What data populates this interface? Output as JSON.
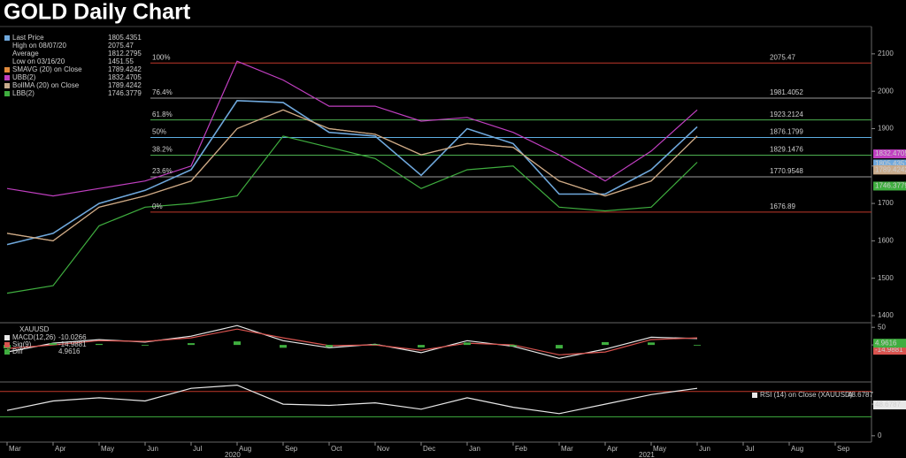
{
  "chart_data": [
    {
      "type": "line",
      "title": "GOLD Daily Chart",
      "x": [
        "2020-03",
        "2020-04",
        "2020-05",
        "2020-06",
        "2020-07",
        "2020-08",
        "2020-09",
        "2020-10",
        "2020-11",
        "2020-12",
        "2021-01",
        "2021-02",
        "2021-03",
        "2021-04",
        "2021-05",
        "2021-06"
      ],
      "xlim": [
        "2020-03",
        "2021-09"
      ],
      "ylim": [
        1381,
        2173
      ],
      "yticks": [
        1400,
        1500,
        1600,
        1700,
        1800,
        1900,
        2000,
        2100
      ],
      "series": [
        {
          "name": "Last Price",
          "color": "#6fa8dc",
          "last": 1805.4351,
          "values": [
            1590,
            1620,
            1700,
            1735,
            1790,
            1975,
            1970,
            1890,
            1880,
            1775,
            1900,
            1860,
            1725,
            1725,
            1790,
            1905
          ]
        },
        {
          "name": "SMAVG (20) on Close",
          "color": "#e08a3c",
          "last": 1789.4242,
          "values": [
            1620,
            1600,
            1690,
            1720,
            1760,
            1900,
            1950,
            1900,
            1885,
            1830,
            1860,
            1850,
            1760,
            1720,
            1760,
            1880
          ]
        },
        {
          "name": "UBB(2)",
          "color": "#c13fc1",
          "last": 1832.4705,
          "values": [
            1740,
            1720,
            1740,
            1760,
            1800,
            2080,
            2030,
            1960,
            1960,
            1920,
            1930,
            1890,
            1830,
            1760,
            1840,
            1950
          ]
        },
        {
          "name": "BollMA (20) on Close",
          "color": "#c9ab8c",
          "last": 1789.4242,
          "values": [
            1620,
            1600,
            1690,
            1720,
            1760,
            1900,
            1950,
            1900,
            1885,
            1830,
            1860,
            1850,
            1760,
            1720,
            1760,
            1880
          ]
        },
        {
          "name": "LBB(2)",
          "color": "#3fae3f",
          "last": 1746.3779,
          "values": [
            1460,
            1480,
            1640,
            1690,
            1700,
            1720,
            1880,
            1850,
            1820,
            1740,
            1790,
            1800,
            1690,
            1680,
            1690,
            1810
          ]
        }
      ],
      "stats": [
        {
          "label": "High on 08/07/20",
          "value": 2075.47
        },
        {
          "label": "Average",
          "value": 1812.2795
        },
        {
          "label": "Low on 03/16/20",
          "value": 1451.55
        }
      ],
      "fib_levels": [
        {
          "label": "100%",
          "value": 2075.47,
          "color": "#c0392b"
        },
        {
          "label": "76.4%",
          "value": 1981.4052,
          "color": "#9a9a9a"
        },
        {
          "label": "61.8%",
          "value": 1923.2124,
          "color": "#4caf50"
        },
        {
          "label": "50%",
          "value": 1876.1799,
          "color": "#5dade2"
        },
        {
          "label": "38.2%",
          "value": 1829.1476,
          "color": "#4caf50"
        },
        {
          "label": "23.6%",
          "value": 1770.9548,
          "color": "#9a9a9a"
        },
        {
          "label": "0%",
          "value": 1676.89,
          "color": "#c0392b"
        }
      ]
    },
    {
      "type": "line",
      "title": "XAUUSD",
      "x": [
        "2020-03",
        "2020-04",
        "2020-05",
        "2020-06",
        "2020-07",
        "2020-08",
        "2020-09",
        "2020-10",
        "2020-11",
        "2020-12",
        "2021-01",
        "2021-02",
        "2021-03",
        "2021-04",
        "2021-05",
        "2021-06"
      ],
      "xlim": [
        "2020-03",
        "2021-09"
      ],
      "ylim": [
        -105,
        63
      ],
      "yticks": [
        0,
        50
      ],
      "series": [
        {
          "name": "MACD(12,26)",
          "color": "#e8e8e8",
          "last": -10.0266,
          "values": [
            -20,
            5,
            15,
            8,
            25,
            55,
            12,
            -8,
            2,
            -22,
            12,
            -4,
            -38,
            -12,
            22,
            18
          ]
        },
        {
          "name": "Sig(9)",
          "color": "#d9534f",
          "last": -14.9881,
          "values": [
            -10,
            0,
            12,
            10,
            20,
            45,
            20,
            -2,
            0,
            -15,
            5,
            0,
            -28,
            -20,
            15,
            20
          ]
        },
        {
          "name": "Diff",
          "color": "#3fae3f",
          "type": "bar",
          "last": 4.9616,
          "values": [
            -10,
            5,
            3,
            -2,
            5,
            10,
            -8,
            -6,
            2,
            -7,
            7,
            -4,
            -10,
            8,
            7,
            -2
          ]
        }
      ]
    },
    {
      "type": "line",
      "x": [
        "2020-03",
        "2020-04",
        "2020-05",
        "2020-06",
        "2020-07",
        "2020-08",
        "2020-09",
        "2020-10",
        "2020-11",
        "2020-12",
        "2021-01",
        "2021-02",
        "2021-03",
        "2021-04",
        "2021-05",
        "2021-06"
      ],
      "xlim": [
        "2020-03",
        "2021-09"
      ],
      "ylim": [
        -10,
        85
      ],
      "yticks": [
        0,
        50
      ],
      "series": [
        {
          "name": "RSI (14) on Close (XAUUSD)",
          "color": "#e8e8e8",
          "last": 48.6787,
          "values": [
            40,
            55,
            60,
            55,
            75,
            80,
            50,
            48,
            52,
            42,
            60,
            45,
            35,
            50,
            65,
            75
          ]
        }
      ],
      "levels": [
        {
          "value": 70,
          "color": "#c0392b"
        },
        {
          "value": 30,
          "color": "#3fae3f"
        }
      ],
      "xticks": [
        {
          "value": "2020-03",
          "label": "Mar"
        },
        {
          "value": "2020-04",
          "label": "Apr"
        },
        {
          "value": "2020-05",
          "label": "May"
        },
        {
          "value": "2020-06",
          "label": "Jun"
        },
        {
          "value": "2020-07",
          "label": "Jul"
        },
        {
          "value": "2020-08",
          "label": "Aug"
        },
        {
          "value": "2020-09",
          "label": "Sep"
        },
        {
          "value": "2020-10",
          "label": "Oct"
        },
        {
          "value": "2020-11",
          "label": "Nov"
        },
        {
          "value": "2020-12",
          "label": "Dec"
        },
        {
          "value": "2021-01",
          "label": "Jan"
        },
        {
          "value": "2021-02",
          "label": "Feb"
        },
        {
          "value": "2021-03",
          "label": "Mar"
        },
        {
          "value": "2021-04",
          "label": "Apr"
        },
        {
          "value": "2021-05",
          "label": "May"
        },
        {
          "value": "2021-06",
          "label": "Jun"
        },
        {
          "value": "2021-07",
          "label": "Jul"
        },
        {
          "value": "2021-08",
          "label": "Aug"
        },
        {
          "value": "2021-09",
          "label": "Sep"
        }
      ],
      "year_ticks": [
        {
          "value": "2020-08",
          "label": "2020"
        },
        {
          "value": "2021-05",
          "label": "2021"
        }
      ]
    }
  ]
}
